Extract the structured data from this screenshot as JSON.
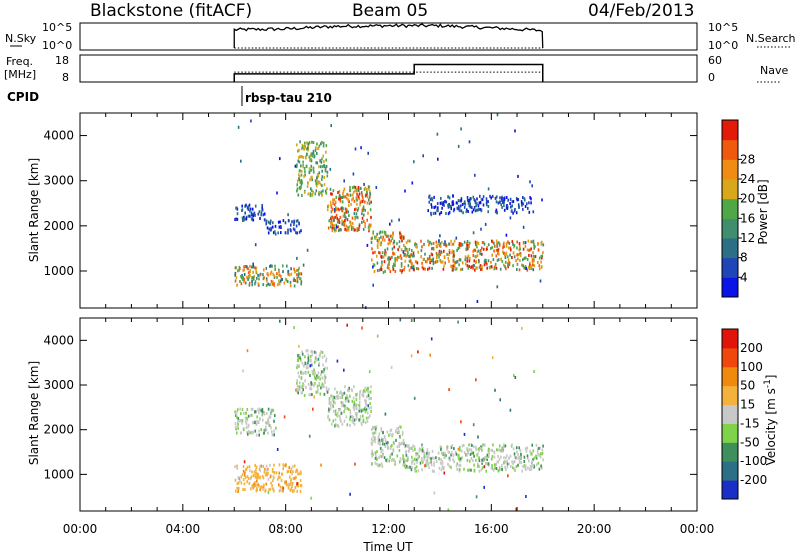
{
  "header": {
    "station": "Blackstone (fitACF)",
    "beam": "Beam 05",
    "date": "04/Feb/2013"
  },
  "sky_panel": {
    "left_label": "N.Sky",
    "left_ticks": [
      "10^5",
      "10^0"
    ],
    "right_ticks": [
      "10^5",
      "10^0"
    ],
    "right_label": "N.Search"
  },
  "freq_panel": {
    "left_label_line1": "Freq.",
    "left_label_line2": "[MHz]",
    "left_ticks": [
      "18",
      "8"
    ],
    "right_ticks": [
      "60",
      "0"
    ],
    "right_label": "Nave"
  },
  "cpid": {
    "label": "CPID",
    "program": "rbsp-tau 210"
  },
  "chart_data": [
    {
      "type": "line",
      "panel": "sky-noise",
      "x_range_hours": [
        0,
        24
      ],
      "data_start_hour": 6,
      "data_end_hour": 18,
      "series": [
        {
          "name": "N.Sky",
          "x": [
            6,
            8,
            10,
            12,
            14,
            16,
            18
          ],
          "values": [
            0.75,
            0.78,
            0.88,
            0.9,
            0.9,
            0.82,
            0.72
          ]
        },
        {
          "name": "N.Search",
          "x": [
            6,
            18
          ],
          "values": [
            0,
            0
          ]
        }
      ]
    },
    {
      "type": "line",
      "panel": "frequency",
      "series": [
        {
          "name": "Freq.",
          "unit": "MHz",
          "x": [
            6,
            13,
            13,
            18
          ],
          "values": [
            11,
            11,
            14.5,
            14.5
          ]
        },
        {
          "name": "Nave",
          "x": [
            6,
            18
          ],
          "values": [
            22,
            22
          ]
        }
      ],
      "ylim_left": [
        8,
        18
      ],
      "ylim_right": [
        0,
        60
      ]
    },
    {
      "type": "heatmap",
      "panel": "power",
      "ylabel": "Slant Range [km]",
      "ylim": [
        180,
        4500
      ],
      "y_ticks": [
        1000,
        2000,
        3000,
        4000
      ],
      "colorbar": {
        "label": "Power [dB]",
        "ticks": [
          4,
          8,
          12,
          16,
          20,
          24,
          28
        ],
        "colors": [
          "#0a14e6",
          "#1f45b8",
          "#2b6f86",
          "#3f8f6f",
          "#4ea845",
          "#d8a81a",
          "#f08c12",
          "#f05a0c",
          "#e21a0a"
        ]
      },
      "regions": [
        {
          "t0": 6.0,
          "t1": 8.6,
          "r0": 700,
          "r1": 1150
        },
        {
          "t0": 6.0,
          "t1": 7.2,
          "r0": 2150,
          "r1": 2500
        },
        {
          "t0": 7.2,
          "t1": 8.6,
          "r0": 1850,
          "r1": 2150
        },
        {
          "t0": 8.4,
          "t1": 9.6,
          "r0": 2700,
          "r1": 3900
        },
        {
          "t0": 9.6,
          "t1": 11.3,
          "r0": 1900,
          "r1": 2900
        },
        {
          "t0": 11.3,
          "t1": 12.6,
          "r0": 1000,
          "r1": 1900
        },
        {
          "t0": 12.6,
          "t1": 18.0,
          "r0": 1050,
          "r1": 1700
        },
        {
          "t0": 13.5,
          "t1": 17.6,
          "r0": 2300,
          "r1": 2700
        }
      ]
    },
    {
      "type": "heatmap",
      "panel": "velocity",
      "ylabel": "Slant Range [km]",
      "xlabel": "Time UT",
      "ylim": [
        180,
        4500
      ],
      "y_ticks": [
        1000,
        2000,
        3000,
        4000
      ],
      "x_ticks": [
        "00:00",
        "04:00",
        "08:00",
        "12:00",
        "16:00",
        "20:00",
        "00:00"
      ],
      "colorbar": {
        "label": "Velocity [m s^-1]",
        "ticks": [
          "200",
          "100",
          "50",
          "15",
          "-15",
          "-50",
          "-100",
          "-200"
        ],
        "colors": [
          "#1a2fc8",
          "#2d6f87",
          "#3d8f5c",
          "#7fd24a",
          "#c8c8c8",
          "#f4b23c",
          "#f08a0c",
          "#f0480c",
          "#e0140a"
        ]
      },
      "regions": [
        {
          "t0": 6.0,
          "t1": 8.6,
          "r0": 650,
          "r1": 1250
        },
        {
          "t0": 6.0,
          "t1": 7.6,
          "r0": 1900,
          "r1": 2500
        },
        {
          "t0": 8.4,
          "t1": 9.6,
          "r0": 2800,
          "r1": 3800
        },
        {
          "t0": 9.6,
          "t1": 11.3,
          "r0": 2100,
          "r1": 3000
        },
        {
          "t0": 11.3,
          "t1": 12.6,
          "r0": 1200,
          "r1": 2100
        },
        {
          "t0": 12.6,
          "t1": 18.0,
          "r0": 1100,
          "r1": 1700
        }
      ]
    }
  ]
}
